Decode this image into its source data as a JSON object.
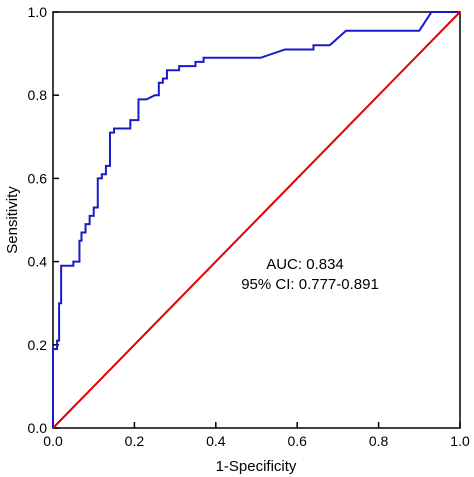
{
  "chart_data": {
    "type": "line",
    "title": "",
    "xlabel": "1-Specificity",
    "ylabel": "Sensitivity",
    "xlim": [
      0,
      1
    ],
    "ylim": [
      0,
      1
    ],
    "xticks": [
      "0.0",
      "0.2",
      "0.4",
      "0.6",
      "0.8",
      "1.0"
    ],
    "yticks": [
      "0.0",
      "0.2",
      "0.4",
      "0.6",
      "0.8",
      "1.0"
    ],
    "grid": false,
    "annotations": [
      "AUC:  0.834",
      "95% CI: 0.777-0.891"
    ],
    "series": [
      {
        "name": "",
        "color": "#1a1acc",
        "points": [
          [
            0.0,
            0.0
          ],
          [
            0.0,
            0.19
          ],
          [
            0.01,
            0.19
          ],
          [
            0.01,
            0.21
          ],
          [
            0.015,
            0.21
          ],
          [
            0.015,
            0.3
          ],
          [
            0.02,
            0.3
          ],
          [
            0.02,
            0.39
          ],
          [
            0.05,
            0.39
          ],
          [
            0.05,
            0.4
          ],
          [
            0.065,
            0.4
          ],
          [
            0.065,
            0.45
          ],
          [
            0.07,
            0.45
          ],
          [
            0.07,
            0.47
          ],
          [
            0.08,
            0.47
          ],
          [
            0.08,
            0.49
          ],
          [
            0.09,
            0.49
          ],
          [
            0.09,
            0.51
          ],
          [
            0.1,
            0.51
          ],
          [
            0.1,
            0.53
          ],
          [
            0.11,
            0.53
          ],
          [
            0.11,
            0.6
          ],
          [
            0.12,
            0.6
          ],
          [
            0.12,
            0.61
          ],
          [
            0.13,
            0.61
          ],
          [
            0.13,
            0.63
          ],
          [
            0.14,
            0.63
          ],
          [
            0.14,
            0.71
          ],
          [
            0.15,
            0.71
          ],
          [
            0.15,
            0.72
          ],
          [
            0.19,
            0.72
          ],
          [
            0.19,
            0.74
          ],
          [
            0.21,
            0.74
          ],
          [
            0.21,
            0.79
          ],
          [
            0.23,
            0.79
          ],
          [
            0.25,
            0.8
          ],
          [
            0.26,
            0.8
          ],
          [
            0.26,
            0.83
          ],
          [
            0.27,
            0.83
          ],
          [
            0.27,
            0.84
          ],
          [
            0.28,
            0.84
          ],
          [
            0.28,
            0.86
          ],
          [
            0.31,
            0.86
          ],
          [
            0.31,
            0.87
          ],
          [
            0.35,
            0.87
          ],
          [
            0.35,
            0.88
          ],
          [
            0.37,
            0.88
          ],
          [
            0.37,
            0.89
          ],
          [
            0.51,
            0.89
          ],
          [
            0.57,
            0.91
          ],
          [
            0.64,
            0.91
          ],
          [
            0.64,
            0.92
          ],
          [
            0.68,
            0.92
          ],
          [
            0.72,
            0.955
          ],
          [
            0.9,
            0.955
          ],
          [
            0.93,
            1.0
          ],
          [
            1.0,
            1.0
          ]
        ]
      },
      {
        "name": "",
        "color": "#e00000",
        "points": [
          [
            0,
            0
          ],
          [
            1,
            1
          ]
        ]
      }
    ]
  }
}
